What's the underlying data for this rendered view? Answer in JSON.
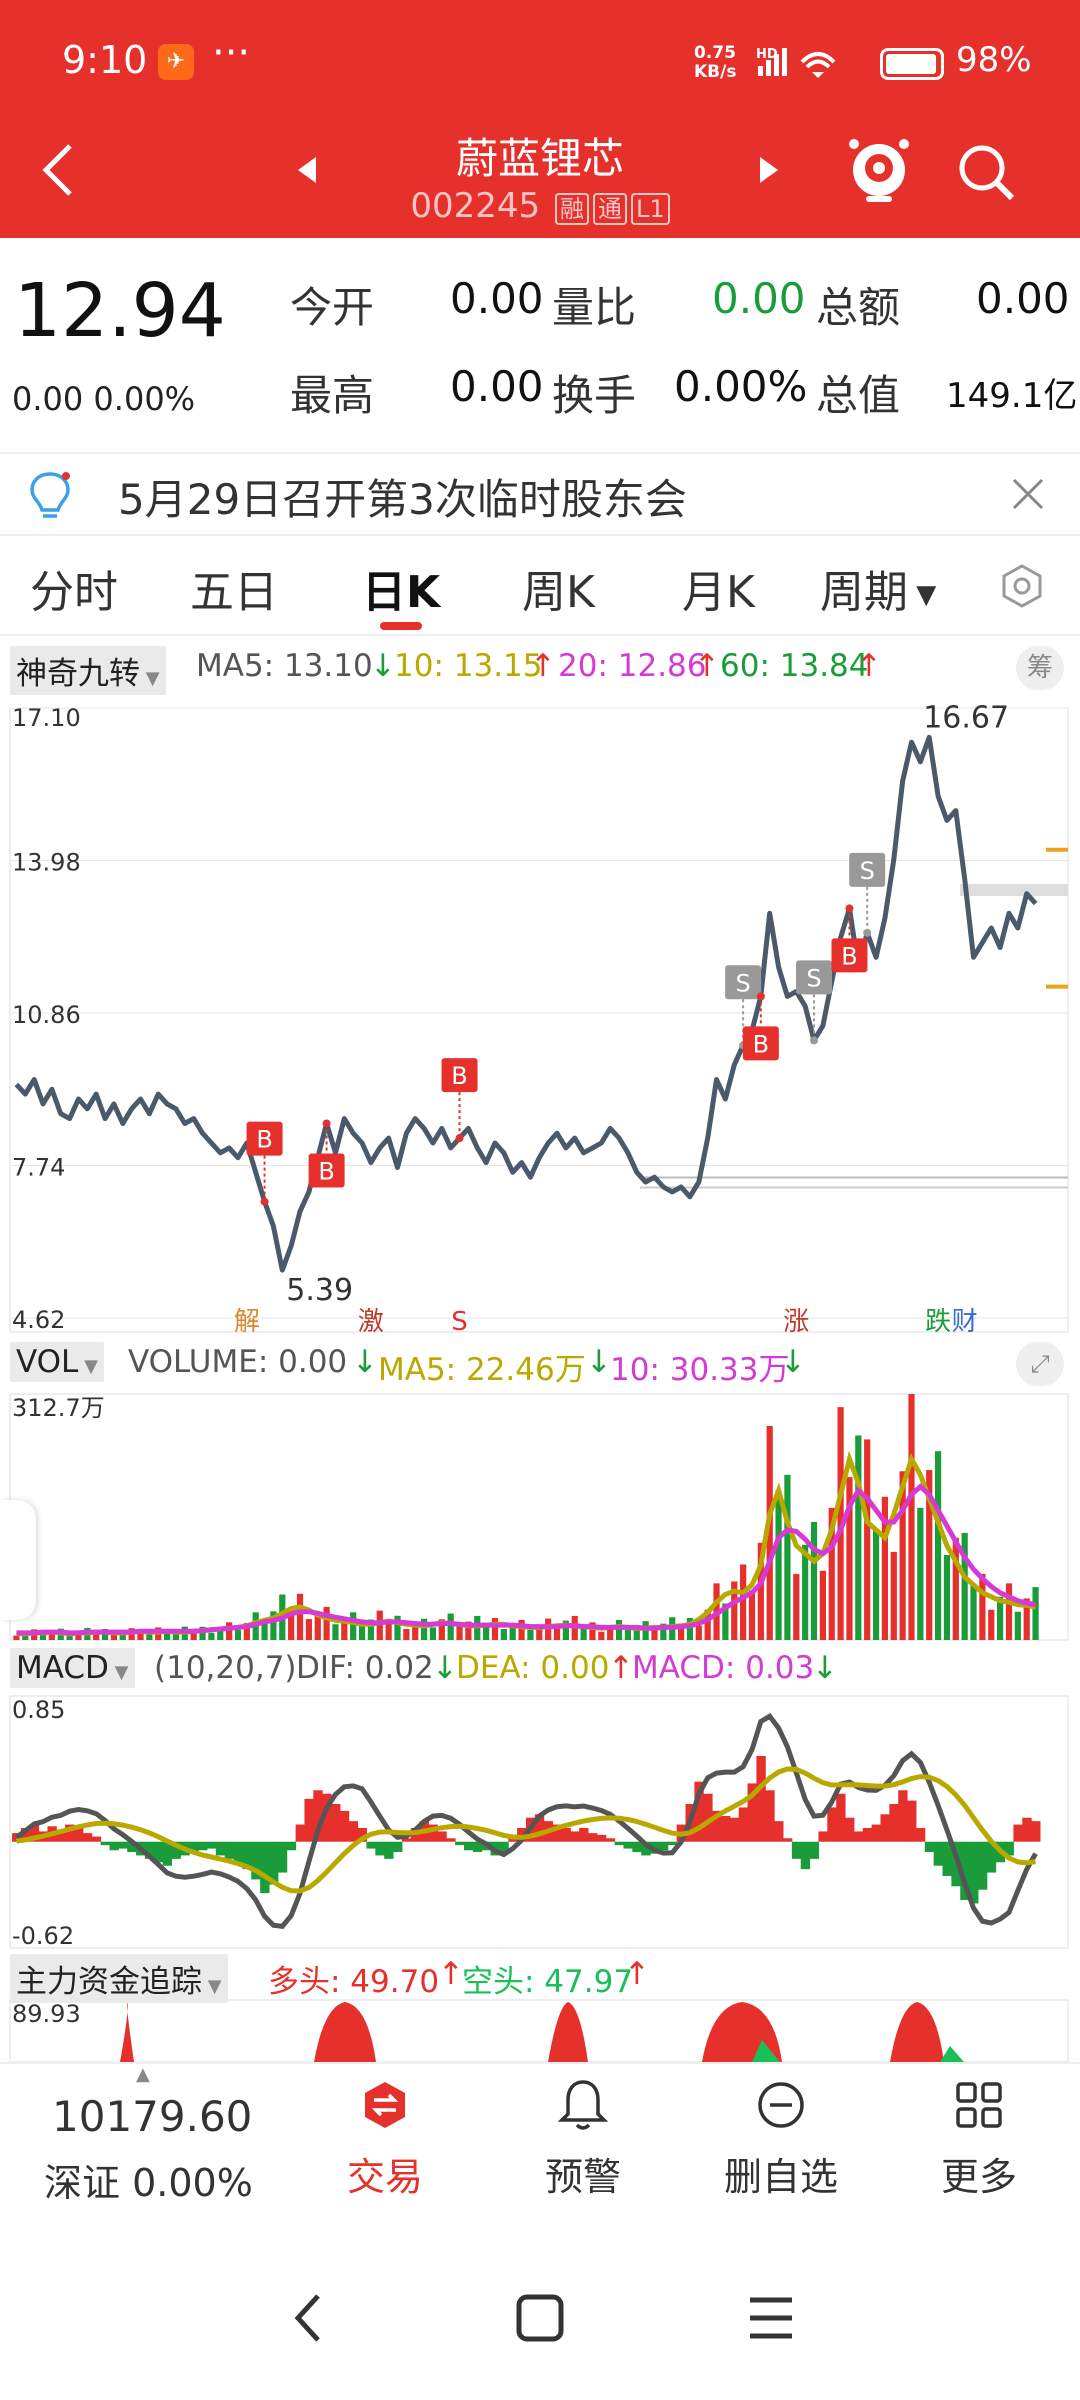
{
  "status": {
    "time": "9:10",
    "net_speed_top": "0.75",
    "net_speed_bottom": "KB/s",
    "hd": "HD",
    "battery": "98%"
  },
  "header": {
    "title": "蔚蓝锂芯",
    "code": "002245",
    "tags": [
      "融",
      "通",
      "L1"
    ]
  },
  "quote": {
    "price": "12.94",
    "change": "0.00 0.00%",
    "fields": [
      {
        "label": "今开",
        "value": "0.00"
      },
      {
        "label": "量比",
        "value": "0.00"
      },
      {
        "label": "总额",
        "value": "0.00"
      },
      {
        "label": "最高",
        "value": "0.00"
      },
      {
        "label": "换手",
        "value": "0.00%"
      },
      {
        "label": "总值",
        "value": "149.1亿"
      }
    ]
  },
  "notice": {
    "text": "5月29日召开第3次临时股东会"
  },
  "tabs": [
    "分时",
    "五日",
    "日K",
    "周K",
    "月K",
    "周期"
  ],
  "active_tab": "日K",
  "indicators": {
    "main": {
      "name": "神奇九转",
      "ma5": "MA5: 13.10",
      "ma10": "10: 13.15",
      "ma20": "20: 12.86",
      "ma60": "60: 13.84",
      "chip_label": "筹"
    },
    "vol": {
      "name": "VOL",
      "volume": "VOLUME: 0.00",
      "ma5": "MA5: 22.46万",
      "ma10": "10: 30.33万"
    },
    "macd": {
      "name": "MACD",
      "params": "(10,20,7)",
      "dif": "DIF: 0.02",
      "dea": "DEA: 0.00",
      "macd": "MACD: 0.03"
    },
    "flow": {
      "name": "主力资金追踪",
      "long": "多头: 49.70",
      "short": "空头: 47.97"
    }
  },
  "colors": {
    "red": "#e5302c",
    "green": "#1a9c3a",
    "price_line": "#4a5a6a",
    "ma_yellow": "#b8a800",
    "ma_magenta": "#d43bd4",
    "orange_marker": "#f0a020"
  },
  "chart_data": [
    {
      "type": "line",
      "title": "",
      "y_ticks": [
        "17.10",
        "13.98",
        "10.86",
        "7.74",
        "4.62"
      ],
      "ylim": [
        4.62,
        17.1
      ],
      "annotations": {
        "high": "16.67",
        "low": "5.39"
      },
      "signals": [
        {
          "label": "B",
          "index": 28
        },
        {
          "label": "B",
          "index": 35
        },
        {
          "label": "B",
          "index": 50
        },
        {
          "label": "S",
          "index": 82
        },
        {
          "label": "B",
          "index": 84
        },
        {
          "label": "S",
          "index": 90
        },
        {
          "label": "B",
          "index": 94
        },
        {
          "label": "S",
          "index": 96
        }
      ],
      "event_tags": [
        {
          "label": "解",
          "index": 26,
          "color": "#d98a2a"
        },
        {
          "label": "激",
          "index": 40,
          "color": "#c0392b"
        },
        {
          "label": "S",
          "index": 50,
          "color": "#e5302c"
        },
        {
          "label": "涨",
          "index": 88,
          "color": "#c0392b"
        },
        {
          "label": "跌",
          "index": 104,
          "color": "#1a9c3a"
        },
        {
          "label": "财",
          "index": 107,
          "color": "#3a6ad4"
        }
      ],
      "series": [
        {
          "values": [
            9.4,
            9.2,
            9.5,
            9.0,
            9.3,
            8.8,
            8.7,
            9.1,
            8.9,
            9.2,
            8.7,
            9.0,
            8.6,
            8.9,
            9.1,
            8.8,
            9.2,
            9.0,
            8.9,
            8.6,
            8.7,
            8.4,
            8.2,
            8.0,
            8.1,
            7.9,
            8.2,
            7.6,
            7.0,
            6.5,
            5.6,
            6.1,
            6.8,
            7.2,
            7.9,
            8.6,
            8.0,
            8.7,
            8.4,
            8.2,
            7.8,
            8.1,
            8.3,
            7.7,
            8.4,
            8.7,
            8.5,
            8.2,
            8.5,
            8.1,
            8.3,
            8.5,
            8.1,
            7.8,
            8.2,
            8.0,
            7.6,
            7.8,
            7.5,
            7.9,
            8.2,
            8.4,
            8.1,
            8.3,
            8.0,
            8.1,
            8.2,
            8.5,
            8.3,
            8.0,
            7.6,
            7.4,
            7.5,
            7.3,
            7.2,
            7.3,
            7.1,
            7.4,
            8.3,
            9.5,
            9.1,
            9.8,
            10.2,
            10.5,
            11.2,
            12.9,
            11.8,
            11.2,
            11.3,
            11.0,
            10.3,
            10.6,
            11.5,
            12.4,
            13.0,
            11.8,
            12.5,
            12.0,
            12.8,
            14.0,
            15.6,
            16.4,
            16.0,
            16.5,
            15.3,
            14.8,
            15.0,
            13.6,
            12.0,
            12.3,
            12.6,
            12.2,
            12.9,
            12.6,
            13.3,
            13.1
          ]
        }
      ]
    },
    {
      "type": "bar",
      "title": "",
      "y_ticks": [
        "312.7万"
      ],
      "ylim": [
        0,
        312.7
      ],
      "series": [
        {
          "name": "MA5",
          "values": [
            8,
            8,
            9,
            9,
            10,
            9,
            8,
            9,
            9,
            10,
            10,
            9,
            9,
            10,
            11,
            10,
            10,
            11,
            10,
            10,
            11,
            12,
            13,
            14,
            15,
            16,
            18,
            22,
            25,
            28,
            34,
            40,
            42,
            38,
            32,
            28,
            25,
            24,
            22,
            20,
            20,
            22,
            24,
            22,
            20,
            19,
            18,
            20,
            22,
            21,
            20,
            18,
            18,
            19,
            20,
            20,
            18,
            17,
            16,
            16,
            17,
            18,
            19,
            18,
            17,
            16,
            15,
            16,
            17,
            16,
            15,
            15,
            16,
            16,
            17,
            18,
            20,
            26,
            35,
            48,
            58,
            62,
            60,
            70,
            95,
            160,
            190,
            150,
            120,
            110,
            100,
            110,
            140,
            185,
            230,
            200,
            150,
            140,
            130,
            160,
            195,
            230,
            210,
            180,
            150,
            120,
            100,
            80,
            70,
            60,
            55,
            50,
            48,
            45,
            44,
            42
          ]
        },
        {
          "name": "10",
          "values": [
            9,
            9,
            9,
            10,
            10,
            10,
            9,
            9,
            10,
            10,
            10,
            10,
            10,
            10,
            11,
            11,
            11,
            11,
            11,
            11,
            11,
            12,
            13,
            14,
            15,
            16,
            17,
            20,
            23,
            25,
            28,
            33,
            36,
            36,
            34,
            31,
            29,
            27,
            25,
            23,
            22,
            22,
            23,
            23,
            22,
            21,
            20,
            20,
            21,
            21,
            20,
            19,
            19,
            19,
            19,
            19,
            19,
            18,
            17,
            17,
            17,
            17,
            18,
            18,
            17,
            17,
            16,
            16,
            16,
            16,
            16,
            15,
            15,
            16,
            16,
            17,
            18,
            21,
            26,
            33,
            41,
            48,
            54,
            60,
            72,
            100,
            130,
            140,
            138,
            128,
            115,
            110,
            118,
            140,
            170,
            190,
            180,
            165,
            150,
            150,
            165,
            185,
            195,
            185,
            165,
            145,
            125,
            105,
            90,
            78,
            68,
            60,
            55,
            50,
            47,
            45
          ]
        }
      ]
    },
    {
      "type": "bar",
      "title": "",
      "y_ticks": [
        "0.85",
        "-0.62"
      ],
      "ylim": [
        -0.62,
        0.85
      ],
      "series": [
        {
          "name": "MACD",
          "values": [
            0.05,
            0.08,
            0.1,
            0.06,
            0.09,
            0.07,
            0.1,
            0.08,
            0.05,
            0.03,
            -0.02,
            -0.05,
            -0.04,
            -0.06,
            -0.08,
            -0.1,
            -0.12,
            -0.14,
            -0.1,
            -0.08,
            -0.06,
            -0.05,
            -0.04,
            -0.08,
            -0.1,
            -0.12,
            -0.16,
            -0.22,
            -0.3,
            -0.25,
            -0.18,
            -0.05,
            0.1,
            0.25,
            0.3,
            0.28,
            0.22,
            0.18,
            0.12,
            0.08,
            -0.04,
            -0.08,
            -0.1,
            -0.06,
            0.02,
            0.08,
            0.12,
            0.1,
            0.06,
            0.02,
            -0.02,
            -0.05,
            -0.06,
            -0.05,
            -0.08,
            -0.06,
            0.04,
            0.08,
            0.14,
            0.16,
            0.12,
            0.1,
            0.08,
            0.06,
            0.08,
            0.05,
            0.04,
            0.02,
            -0.02,
            -0.04,
            -0.06,
            -0.08,
            -0.07,
            -0.05,
            -0.02,
            0.1,
            0.22,
            0.35,
            0.28,
            0.18,
            0.15,
            0.14,
            0.2,
            0.34,
            0.5,
            0.3,
            0.12,
            0.02,
            -0.1,
            -0.16,
            -0.1,
            0.06,
            0.2,
            0.28,
            0.14,
            0.06,
            0.08,
            0.1,
            0.16,
            0.22,
            0.3,
            0.24,
            0.08,
            -0.06,
            -0.14,
            -0.2,
            -0.26,
            -0.34,
            -0.36,
            -0.28,
            -0.18,
            -0.12,
            -0.08,
            0.1,
            0.14,
            0.12
          ]
        }
      ]
    }
  ],
  "bottom": {
    "index_value": "10179.60",
    "index_name": "深证 0.00%",
    "items": [
      {
        "label": "交易",
        "icon": "trade-icon",
        "active": true
      },
      {
        "label": "预警",
        "icon": "bell-icon"
      },
      {
        "label": "删自选",
        "icon": "remove-watchlist-icon"
      },
      {
        "label": "更多",
        "icon": "grid-icon"
      }
    ]
  }
}
